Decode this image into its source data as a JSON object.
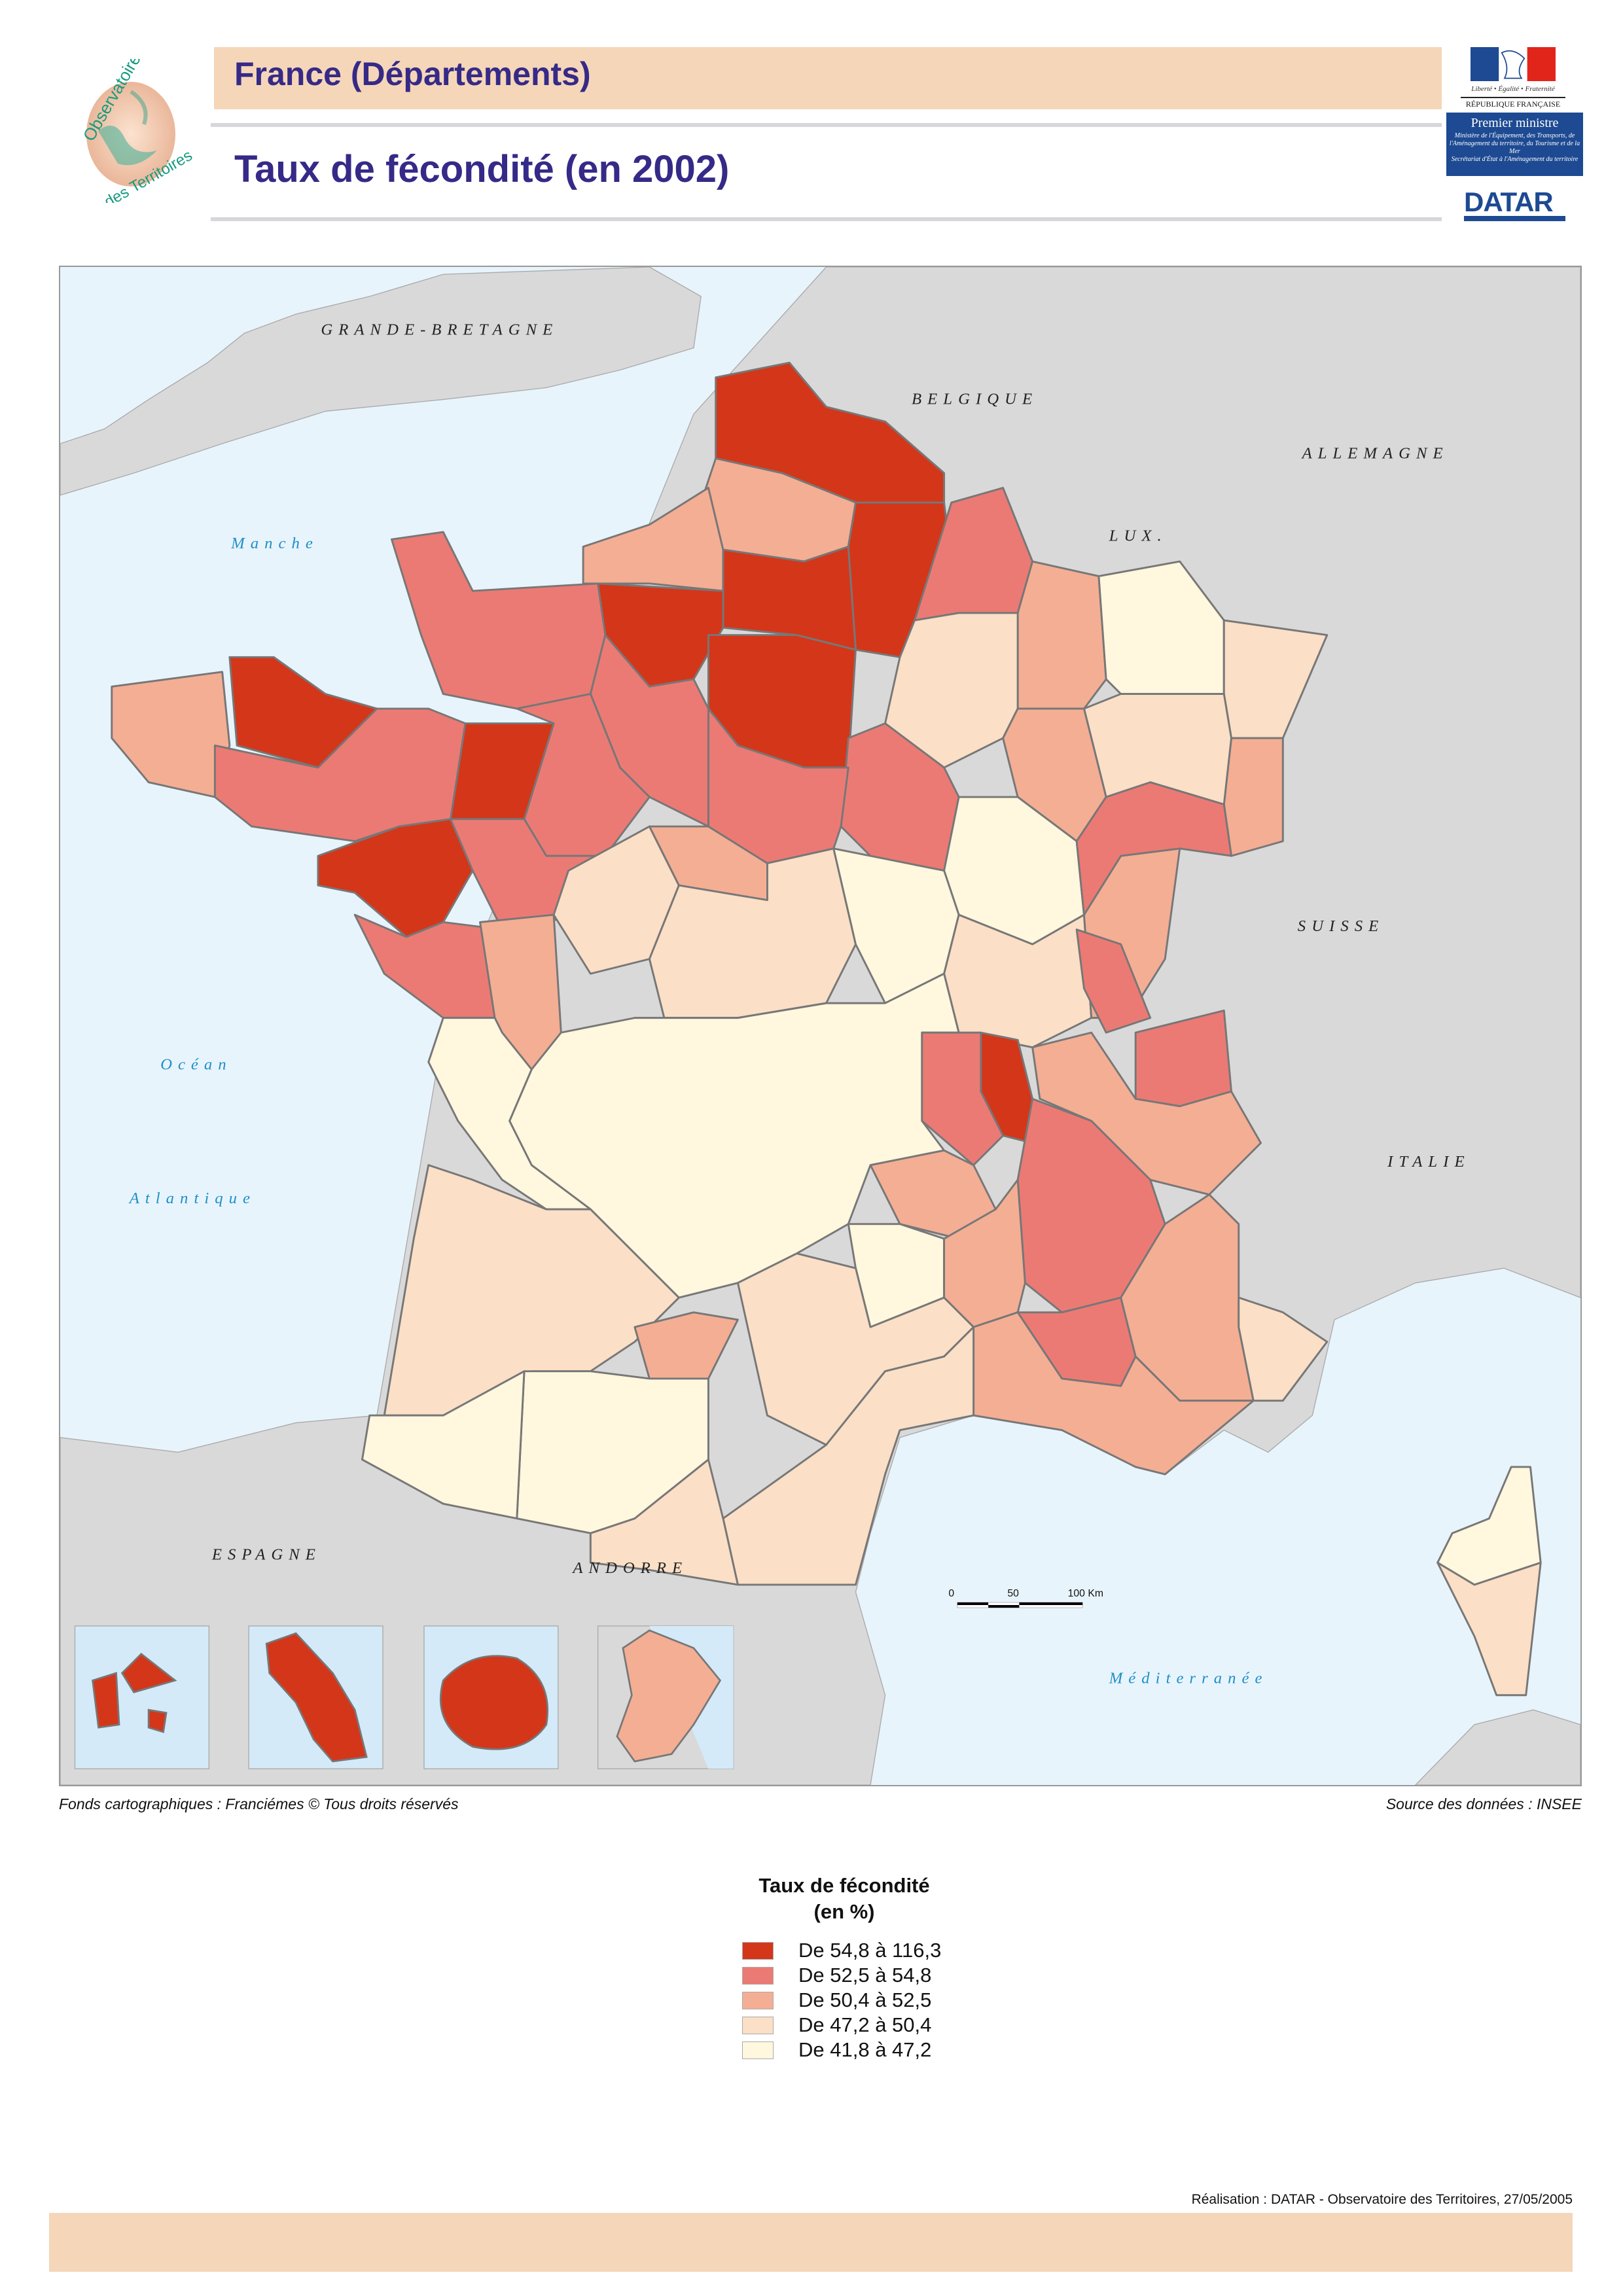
{
  "header": {
    "title": "France (Départements)",
    "subtitle": "Taux de fécondité (en 2002)",
    "band_color": "#f5d6b9",
    "title_color": "#352a87"
  },
  "logos": {
    "observatoire_text": "Observatoire des Territoires",
    "republique_motto": "Liberté • Égalité • Fraternité",
    "republique_name": "RÉPUBLIQUE FRANÇAISE",
    "premier_ministre": "Premier ministre",
    "ministere": "Ministère de l'Équipement, des Transports, de l'Aménagement du territoire, du Tourisme et de la Mer",
    "secretariat": "Secrétariat d'État à l'Aménagement du territoire",
    "datar": "DATAR"
  },
  "map": {
    "countries": {
      "gb": "GRANDE-BRETAGNE",
      "be": "BELGIQUE",
      "de": "ALLEMAGNE",
      "lu": "LUX.",
      "ch": "SUISSE",
      "it": "ITALIE",
      "es": "ESPAGNE",
      "ad": "ANDORRE"
    },
    "seas": {
      "manche": "Manche",
      "ocean1": "Océan",
      "ocean2": "Atlantique",
      "med": "Méditerranée"
    },
    "scale": {
      "l0": "0",
      "l50": "50",
      "l100": "100 Km"
    },
    "colors": {
      "sea": "#e8f4fc",
      "land": "#d9d9d9",
      "border": "#777777",
      "inset_sea": "#d4eaf8"
    }
  },
  "credits": {
    "left": "Fonds cartographiques : Franciémes © Tous droits réservés",
    "right": "Source des données : INSEE"
  },
  "legend": {
    "title_line1": "Taux de fécondité",
    "title_line2": "(en %)",
    "items": [
      {
        "label": "De 54,8 à 116,3",
        "color": "#d4361a"
      },
      {
        "label": "De 52,5 à 54,8",
        "color": "#ec7a74"
      },
      {
        "label": "De 50,4 à 52,5",
        "color": "#f4ae94"
      },
      {
        "label": "De 47,2 à 50,4",
        "color": "#fbdfc6"
      },
      {
        "label": "De 41,8 à 47,2",
        "color": "#fff7de"
      }
    ]
  },
  "footer": {
    "realisation": "Réalisation : DATAR - Observatoire des Territoires, 27/05/2005"
  }
}
